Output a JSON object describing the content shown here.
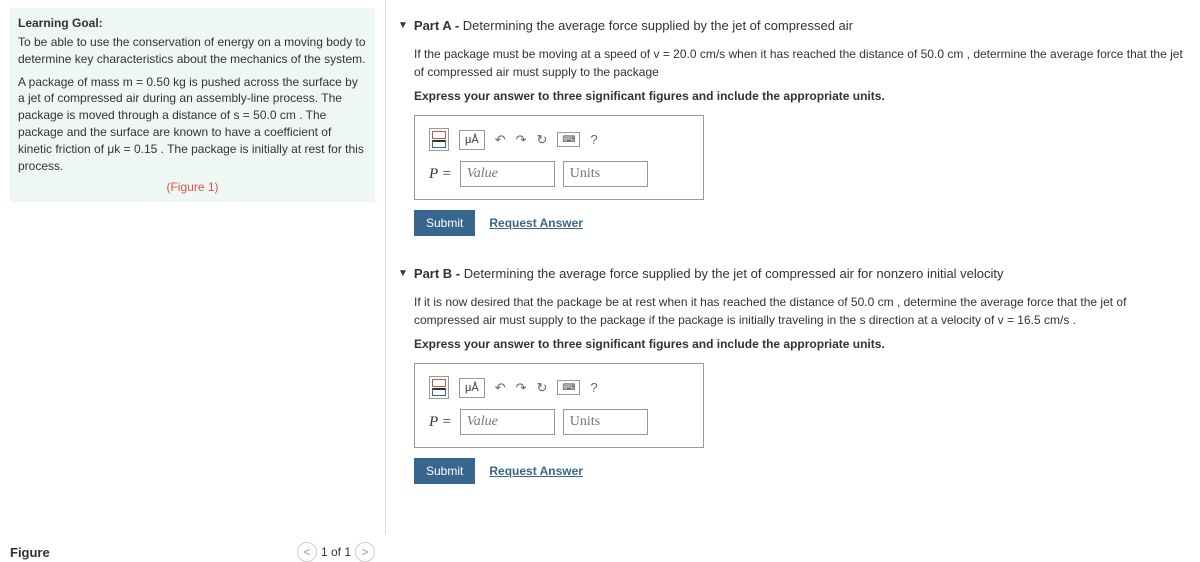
{
  "left": {
    "goal_title": "Learning Goal:",
    "goal_text": "To be able to use the conservation of energy on a moving body to determine key characteristics about the mechanics of the system.",
    "problem_text": "A package of mass m = 0.50  kg is pushed across the surface by a jet of compressed air during an assembly-line process. The package is moved through a distance of s = 50.0  cm . The package and the surface are known to have a coefficient of kinetic friction of μk = 0.15 . The package is initially at rest for this process.",
    "figure_link": "(Figure 1)",
    "figure_title": "Figure",
    "pager_text": "1 of 1"
  },
  "partA": {
    "title_bold": "Part A - ",
    "title_rest": "Determining the average force supplied by the jet of compressed air",
    "prompt": "If the package must be moving at a speed of v = 20.0  cm/s when it has reached the distance of 50.0  cm , determine the average force that the jet of compressed air must supply to the package",
    "instruct": "Express your answer to three significant figures and include the appropriate units.",
    "var": "P =",
    "value_ph": "Value",
    "units_ph": "Units",
    "submit": "Submit",
    "request": "Request Answer",
    "mua": "μÅ",
    "help": "?"
  },
  "partB": {
    "title_bold": "Part B - ",
    "title_rest": "Determining the average force supplied by the jet of compressed air for nonzero initial velocity",
    "prompt": "If it is now desired that the package be at rest when it has reached the distance of 50.0  cm , determine the average force that the jet of compressed air must supply to the package if the package is initially traveling in the s direction at a velocity of v = 16.5  cm/s .",
    "instruct": "Express your answer to three significant figures and include the appropriate units.",
    "var": "P =",
    "value_ph": "Value",
    "units_ph": "Units",
    "submit": "Submit",
    "request": "Request Answer",
    "mua": "μÅ",
    "help": "?"
  }
}
